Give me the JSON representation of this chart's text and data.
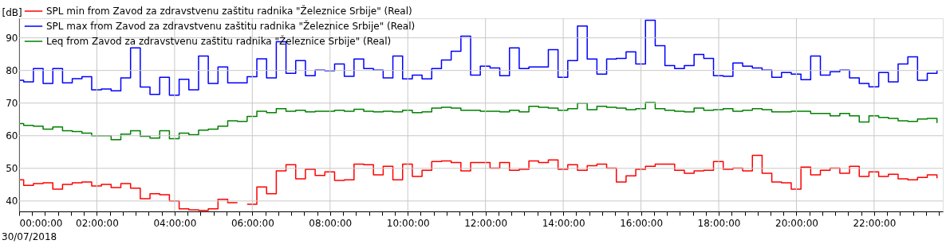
{
  "chart_data": {
    "type": "step",
    "ylabel": "[dB]",
    "x": [
      "2018-07-30T00:00",
      "2018-07-30T00:07",
      "2018-07-30T00:22",
      "2018-07-30T00:37",
      "2018-07-30T00:52",
      "2018-07-30T01:07",
      "2018-07-30T01:22",
      "2018-07-30T01:37",
      "2018-07-30T01:52",
      "2018-07-30T02:07",
      "2018-07-30T02:22",
      "2018-07-30T02:37",
      "2018-07-30T02:52",
      "2018-07-30T03:07",
      "2018-07-30T03:22",
      "2018-07-30T03:37",
      "2018-07-30T03:52",
      "2018-07-30T04:07",
      "2018-07-30T04:22",
      "2018-07-30T04:37",
      "2018-07-30T04:52",
      "2018-07-30T05:07",
      "2018-07-30T05:22",
      "2018-07-30T05:37",
      "2018-07-30T05:52",
      "2018-07-30T06:07",
      "2018-07-30T06:22",
      "2018-07-30T06:37",
      "2018-07-30T06:52",
      "2018-07-30T07:07",
      "2018-07-30T07:22",
      "2018-07-30T07:37",
      "2018-07-30T07:52",
      "2018-07-30T08:07",
      "2018-07-30T08:22",
      "2018-07-30T08:37",
      "2018-07-30T08:52",
      "2018-07-30T09:07",
      "2018-07-30T09:22",
      "2018-07-30T09:37",
      "2018-07-30T09:52",
      "2018-07-30T10:07",
      "2018-07-30T10:22",
      "2018-07-30T10:37",
      "2018-07-30T10:52",
      "2018-07-30T11:07",
      "2018-07-30T11:22",
      "2018-07-30T11:37",
      "2018-07-30T11:52",
      "2018-07-30T12:07",
      "2018-07-30T12:22",
      "2018-07-30T12:37",
      "2018-07-30T12:52",
      "2018-07-30T13:07",
      "2018-07-30T13:22",
      "2018-07-30T13:37",
      "2018-07-30T13:52",
      "2018-07-30T14:07",
      "2018-07-30T14:22",
      "2018-07-30T14:37",
      "2018-07-30T14:52",
      "2018-07-30T15:07",
      "2018-07-30T15:22",
      "2018-07-30T15:37",
      "2018-07-30T15:52",
      "2018-07-30T16:07",
      "2018-07-30T16:22",
      "2018-07-30T16:37",
      "2018-07-30T16:52",
      "2018-07-30T17:07",
      "2018-07-30T17:22",
      "2018-07-30T17:37",
      "2018-07-30T17:52",
      "2018-07-30T18:07",
      "2018-07-30T18:22",
      "2018-07-30T18:37",
      "2018-07-30T18:52",
      "2018-07-30T19:07",
      "2018-07-30T19:22",
      "2018-07-30T19:37",
      "2018-07-30T19:52",
      "2018-07-30T20:07",
      "2018-07-30T20:22",
      "2018-07-30T20:37",
      "2018-07-30T20:52",
      "2018-07-30T21:07",
      "2018-07-30T21:22",
      "2018-07-30T21:37",
      "2018-07-30T21:52",
      "2018-07-30T22:07",
      "2018-07-30T22:22",
      "2018-07-30T22:37",
      "2018-07-30T22:52",
      "2018-07-30T23:07",
      "2018-07-30T23:22",
      "2018-07-30T23:37"
    ],
    "series": [
      {
        "name": "SPL min from Zavod za zdravstvenu zaštitu radnika \"Železnice Srbije\" (Real)",
        "color": "#ff0000",
        "values": [
          46.5,
          44.8,
          45.3,
          45.6,
          43.6,
          45.1,
          45.6,
          45.8,
          44.6,
          45.1,
          44.1,
          45.3,
          43.9,
          40.7,
          42.2,
          41.9,
          40.0,
          37.6,
          37.3,
          37.1,
          37.6,
          40.5,
          39.5,
          null,
          39.0,
          44.3,
          42.2,
          49.2,
          51.1,
          46.8,
          49.7,
          47.8,
          48.9,
          46.3,
          46.5,
          51.3,
          51.1,
          48.0,
          50.6,
          46.5,
          51.3,
          47.5,
          49.4,
          52.1,
          52.3,
          51.8,
          49.2,
          51.8,
          51.8,
          50.1,
          51.8,
          49.4,
          49.7,
          52.3,
          51.8,
          52.6,
          49.7,
          51.1,
          49.4,
          50.8,
          51.3,
          50.1,
          45.8,
          47.7,
          49.7,
          50.6,
          51.3,
          51.3,
          49.4,
          48.5,
          49.2,
          49.4,
          52.1,
          49.7,
          50.1,
          49.2,
          54.0,
          48.5,
          45.8,
          45.6,
          43.6,
          50.4,
          48.0,
          49.4,
          50.1,
          48.5,
          50.6,
          47.5,
          48.9,
          47.5,
          48.2,
          46.8,
          46.5,
          47.2,
          48.0,
          47.0
        ]
      },
      {
        "name": "SPL max from Zavod za zdravstvenu zaštitu radnika \"Železnice Srbije\" (Real)",
        "color": "#0000ff",
        "values": [
          77.0,
          76.5,
          80.6,
          76.0,
          80.6,
          76.2,
          77.5,
          78.1,
          74.1,
          74.3,
          73.8,
          77.7,
          86.9,
          74.9,
          72.7,
          77.9,
          72.4,
          77.3,
          74.1,
          84.4,
          76.0,
          81.1,
          76.2,
          76.2,
          78.1,
          83.6,
          77.7,
          88.8,
          79.1,
          83.0,
          78.4,
          80.1,
          79.9,
          82.0,
          78.2,
          83.5,
          80.6,
          80.1,
          77.7,
          84.4,
          77.4,
          78.6,
          77.4,
          80.6,
          83.2,
          85.9,
          90.5,
          78.6,
          81.3,
          80.8,
          78.4,
          86.9,
          80.6,
          81.1,
          81.1,
          86.4,
          77.9,
          83.0,
          93.6,
          83.5,
          78.9,
          83.5,
          83.7,
          85.7,
          82.0,
          95.4,
          87.6,
          81.5,
          80.6,
          81.5,
          84.9,
          83.7,
          78.4,
          78.2,
          82.3,
          81.3,
          80.8,
          80.1,
          77.9,
          79.4,
          78.9,
          77.2,
          84.4,
          78.6,
          79.6,
          80.1,
          77.7,
          76.0,
          75.0,
          79.4,
          76.5,
          82.0,
          84.2,
          77.0,
          79.1,
          80.1
        ]
      },
      {
        "name": "Leq from Zavod za zdravstvenu zaštitu radnika \"Železnice Srbije\" (Real)",
        "color": "#008000",
        "values": [
          63.7,
          63.2,
          62.9,
          62.0,
          62.7,
          61.5,
          61.3,
          60.8,
          60.0,
          60.0,
          58.8,
          60.5,
          61.5,
          59.8,
          59.3,
          61.5,
          59.1,
          60.8,
          60.3,
          61.7,
          62.0,
          62.9,
          64.6,
          64.4,
          65.9,
          67.5,
          67.1,
          68.3,
          67.5,
          67.8,
          67.3,
          67.5,
          67.5,
          67.8,
          67.5,
          68.1,
          67.5,
          67.3,
          67.5,
          67.3,
          67.8,
          67.1,
          67.3,
          68.5,
          68.7,
          68.5,
          67.8,
          67.8,
          67.5,
          67.5,
          67.3,
          67.8,
          67.3,
          69.0,
          68.7,
          68.5,
          67.8,
          68.3,
          70.0,
          68.0,
          69.0,
          68.7,
          68.5,
          68.0,
          68.3,
          70.2,
          68.3,
          67.8,
          67.5,
          67.3,
          68.5,
          67.8,
          68.0,
          68.3,
          67.5,
          67.8,
          68.3,
          68.0,
          67.3,
          67.3,
          67.5,
          67.5,
          66.8,
          66.8,
          66.1,
          66.8,
          66.1,
          64.2,
          66.1,
          65.6,
          65.3,
          64.6,
          64.4,
          65.1,
          65.3,
          63.9
        ]
      }
    ],
    "xlim": [
      "2018-07-30T00:00",
      "2018-07-30T23:46"
    ],
    "xticks": [
      {
        "value": "2018-07-30T00:00",
        "label": "00:00:00"
      },
      {
        "value": "2018-07-30T00:20",
        "label": null
      },
      {
        "value": "2018-07-30T00:40",
        "label": null
      },
      {
        "value": "2018-07-30T01:00",
        "label": null
      },
      {
        "value": "2018-07-30T01:20",
        "label": null
      },
      {
        "value": "2018-07-30T01:40",
        "label": null
      },
      {
        "value": "2018-07-30T02:00",
        "label": "02:00:00"
      },
      {
        "value": "2018-07-30T02:20",
        "label": null
      },
      {
        "value": "2018-07-30T02:40",
        "label": null
      },
      {
        "value": "2018-07-30T03:00",
        "label": null
      },
      {
        "value": "2018-07-30T03:20",
        "label": null
      },
      {
        "value": "2018-07-30T03:40",
        "label": null
      },
      {
        "value": "2018-07-30T04:00",
        "label": "04:00:00"
      },
      {
        "value": "2018-07-30T04:20",
        "label": null
      },
      {
        "value": "2018-07-30T04:40",
        "label": null
      },
      {
        "value": "2018-07-30T05:00",
        "label": null
      },
      {
        "value": "2018-07-30T05:20",
        "label": null
      },
      {
        "value": "2018-07-30T05:40",
        "label": null
      },
      {
        "value": "2018-07-30T06:00",
        "label": "06:00:00"
      },
      {
        "value": "2018-07-30T06:20",
        "label": null
      },
      {
        "value": "2018-07-30T06:40",
        "label": null
      },
      {
        "value": "2018-07-30T07:00",
        "label": null
      },
      {
        "value": "2018-07-30T07:20",
        "label": null
      },
      {
        "value": "2018-07-30T07:40",
        "label": null
      },
      {
        "value": "2018-07-30T08:00",
        "label": "08:00:00"
      },
      {
        "value": "2018-07-30T08:20",
        "label": null
      },
      {
        "value": "2018-07-30T08:40",
        "label": null
      },
      {
        "value": "2018-07-30T09:00",
        "label": null
      },
      {
        "value": "2018-07-30T09:20",
        "label": null
      },
      {
        "value": "2018-07-30T09:40",
        "label": null
      },
      {
        "value": "2018-07-30T10:00",
        "label": "10:00:00"
      },
      {
        "value": "2018-07-30T10:20",
        "label": null
      },
      {
        "value": "2018-07-30T10:40",
        "label": null
      },
      {
        "value": "2018-07-30T11:00",
        "label": null
      },
      {
        "value": "2018-07-30T11:20",
        "label": null
      },
      {
        "value": "2018-07-30T11:40",
        "label": null
      },
      {
        "value": "2018-07-30T12:00",
        "label": "12:00:00"
      },
      {
        "value": "2018-07-30T12:20",
        "label": null
      },
      {
        "value": "2018-07-30T12:40",
        "label": null
      },
      {
        "value": "2018-07-30T13:00",
        "label": null
      },
      {
        "value": "2018-07-30T13:20",
        "label": null
      },
      {
        "value": "2018-07-30T13:40",
        "label": null
      },
      {
        "value": "2018-07-30T14:00",
        "label": "14:00:00"
      },
      {
        "value": "2018-07-30T14:20",
        "label": null
      },
      {
        "value": "2018-07-30T14:40",
        "label": null
      },
      {
        "value": "2018-07-30T15:00",
        "label": null
      },
      {
        "value": "2018-07-30T15:20",
        "label": null
      },
      {
        "value": "2018-07-30T15:40",
        "label": null
      },
      {
        "value": "2018-07-30T16:00",
        "label": "16:00:00"
      },
      {
        "value": "2018-07-30T16:20",
        "label": null
      },
      {
        "value": "2018-07-30T16:40",
        "label": null
      },
      {
        "value": "2018-07-30T17:00",
        "label": null
      },
      {
        "value": "2018-07-30T17:20",
        "label": null
      },
      {
        "value": "2018-07-30T17:40",
        "label": null
      },
      {
        "value": "2018-07-30T18:00",
        "label": "18:00:00"
      },
      {
        "value": "2018-07-30T18:20",
        "label": null
      },
      {
        "value": "2018-07-30T18:40",
        "label": null
      },
      {
        "value": "2018-07-30T19:00",
        "label": null
      },
      {
        "value": "2018-07-30T19:20",
        "label": null
      },
      {
        "value": "2018-07-30T19:40",
        "label": null
      },
      {
        "value": "2018-07-30T20:00",
        "label": "20:00:00"
      },
      {
        "value": "2018-07-30T20:20",
        "label": null
      },
      {
        "value": "2018-07-30T20:40",
        "label": null
      },
      {
        "value": "2018-07-30T21:00",
        "label": null
      },
      {
        "value": "2018-07-30T21:20",
        "label": null
      },
      {
        "value": "2018-07-30T21:40",
        "label": null
      },
      {
        "value": "2018-07-30T22:00",
        "label": "22:00:00"
      },
      {
        "value": "2018-07-30T22:20",
        "label": null
      },
      {
        "value": "2018-07-30T22:40",
        "label": null
      },
      {
        "value": "2018-07-30T23:00",
        "label": null
      },
      {
        "value": "2018-07-30T23:20",
        "label": null
      },
      {
        "value": "2018-07-30T23:40",
        "label": null
      }
    ],
    "ylim": [
      36.8,
      96
    ],
    "yticks": [
      40,
      50,
      60,
      70,
      80,
      90
    ],
    "grid": true,
    "legend": "top left",
    "annotations": [
      "30/07/2018"
    ]
  }
}
